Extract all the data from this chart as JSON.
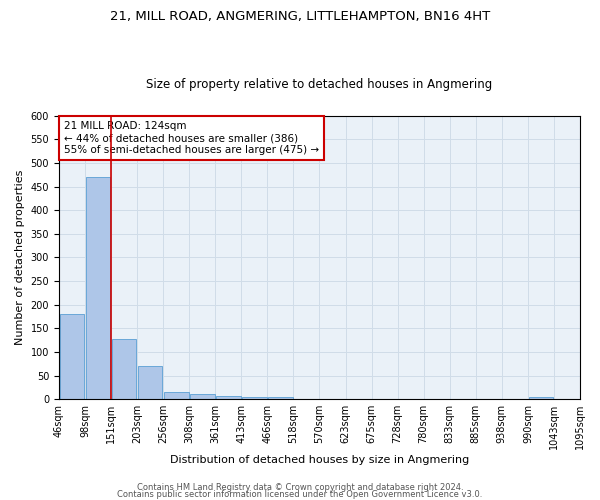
{
  "title1": "21, MILL ROAD, ANGMERING, LITTLEHAMPTON, BN16 4HT",
  "title2": "Size of property relative to detached houses in Angmering",
  "xlabel": "Distribution of detached houses by size in Angmering",
  "ylabel": "Number of detached properties",
  "bar_values": [
    180,
    470,
    128,
    70,
    16,
    10,
    6,
    4,
    4,
    0,
    0,
    0,
    0,
    0,
    0,
    0,
    0,
    0,
    5,
    0
  ],
  "bin_labels": [
    "46sqm",
    "98sqm",
    "151sqm",
    "203sqm",
    "256sqm",
    "308sqm",
    "361sqm",
    "413sqm",
    "466sqm",
    "518sqm",
    "570sqm",
    "623sqm",
    "675sqm",
    "728sqm",
    "780sqm",
    "833sqm",
    "885sqm",
    "938sqm",
    "990sqm",
    "1043sqm",
    "1095sqm"
  ],
  "bar_color": "#aec6e8",
  "bar_edge_color": "#5a9fd4",
  "grid_color": "#d0dce8",
  "background_color": "#eaf1f8",
  "vline_x": 1.5,
  "vline_color": "#cc0000",
  "annotation_text": "21 MILL ROAD: 124sqm\n← 44% of detached houses are smaller (386)\n55% of semi-detached houses are larger (475) →",
  "annotation_box_color": "#ffffff",
  "annotation_box_edge": "#cc0000",
  "ylim": [
    0,
    600
  ],
  "yticks": [
    0,
    50,
    100,
    150,
    200,
    250,
    300,
    350,
    400,
    450,
    500,
    550,
    600
  ],
  "footer1": "Contains HM Land Registry data © Crown copyright and database right 2024.",
  "footer2": "Contains public sector information licensed under the Open Government Licence v3.0.",
  "title1_fontsize": 9.5,
  "title2_fontsize": 8.5,
  "xlabel_fontsize": 8,
  "ylabel_fontsize": 8,
  "tick_fontsize": 7,
  "annotation_fontsize": 7.5,
  "footer_fontsize": 6
}
